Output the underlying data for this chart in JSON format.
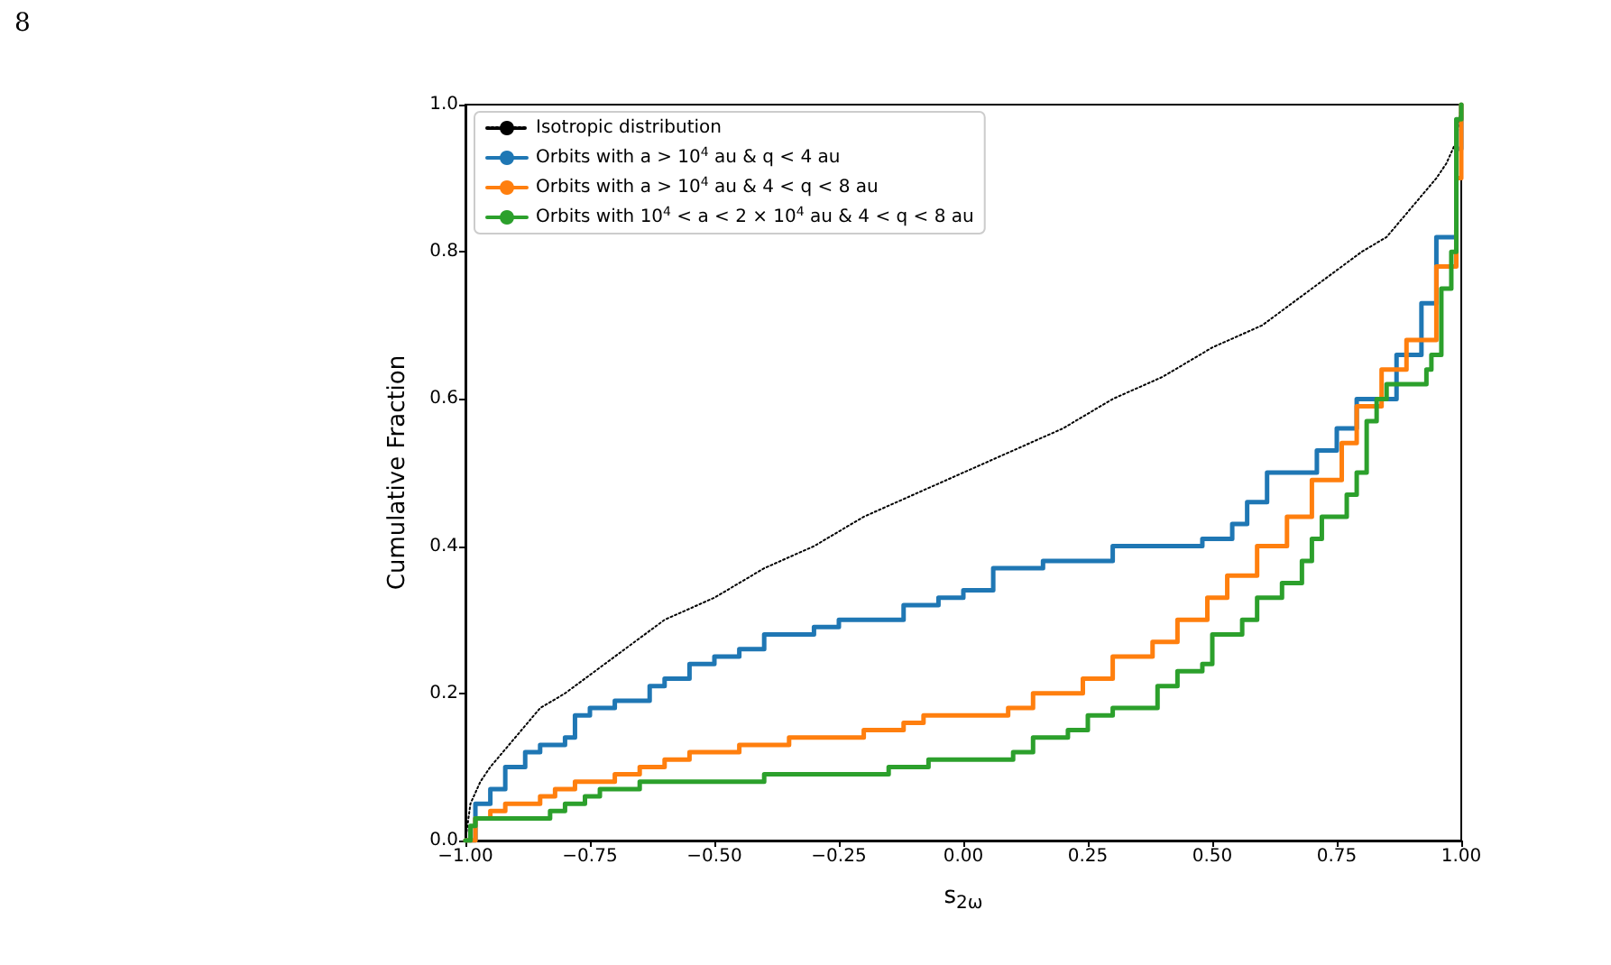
{
  "chart_data": {
    "type": "step",
    "xlabel": "s$_{2ω}$",
    "ylabel": "Cumulative Fraction",
    "annotations": [
      "8"
    ],
    "xlim": [
      -1,
      1
    ],
    "ylim": [
      0,
      1
    ],
    "xticks": [
      {
        "value": -1,
        "label": "−1.00"
      },
      {
        "value": -0.75,
        "label": "−0.75"
      },
      {
        "value": -0.5,
        "label": "−0.50"
      },
      {
        "value": -0.25,
        "label": "−0.25"
      },
      {
        "value": 0,
        "label": "0.00"
      },
      {
        "value": 0.25,
        "label": "0.25"
      },
      {
        "value": 0.5,
        "label": "0.50"
      },
      {
        "value": 0.75,
        "label": "0.75"
      },
      {
        "value": 1,
        "label": "1.00"
      }
    ],
    "yticks": [
      {
        "value": 0,
        "label": "0.0"
      },
      {
        "value": 0.2,
        "label": "0.2"
      },
      {
        "value": 0.4,
        "label": "0.4"
      },
      {
        "value": 0.6,
        "label": "0.6"
      },
      {
        "value": 0.8,
        "label": "0.8"
      },
      {
        "value": 1,
        "label": "1.0"
      }
    ],
    "grid": false,
    "legend": "top left",
    "marker": "none",
    "series": [
      {
        "name": "Isotropic distribution",
        "type": "line",
        "color": "#000000",
        "line_style": "dotted",
        "x": [
          -1,
          -0.99,
          -0.97,
          -0.95,
          -0.9,
          -0.85,
          -0.8,
          -0.7,
          -0.6,
          -0.5,
          -0.4,
          -0.3,
          -0.2,
          -0.1,
          0,
          0.1,
          0.2,
          0.3,
          0.4,
          0.5,
          0.6,
          0.7,
          0.8,
          0.85,
          0.9,
          0.95,
          0.97,
          0.99,
          1
        ],
        "values": [
          0,
          0.05,
          0.08,
          0.1,
          0.14,
          0.18,
          0.2,
          0.25,
          0.3,
          0.33,
          0.37,
          0.4,
          0.44,
          0.47,
          0.5,
          0.53,
          0.56,
          0.6,
          0.63,
          0.67,
          0.7,
          0.75,
          0.8,
          0.82,
          0.86,
          0.9,
          0.92,
          0.95,
          1
        ]
      },
      {
        "name": "Orbits with a > 10$^{4}$ au & q < 4 au",
        "color": "#1f77b4",
        "x": [
          -1,
          -0.98,
          -0.95,
          -0.92,
          -0.88,
          -0.85,
          -0.8,
          -0.78,
          -0.75,
          -0.7,
          -0.63,
          -0.6,
          -0.55,
          -0.5,
          -0.45,
          -0.4,
          -0.3,
          -0.25,
          -0.12,
          -0.05,
          0,
          0.06,
          0.16,
          0.3,
          0.48,
          0.54,
          0.57,
          0.61,
          0.71,
          0.75,
          0.79,
          0.87,
          0.92,
          0.95,
          0.99,
          1
        ],
        "values": [
          0,
          0.05,
          0.07,
          0.1,
          0.12,
          0.13,
          0.14,
          0.17,
          0.18,
          0.19,
          0.21,
          0.22,
          0.24,
          0.25,
          0.26,
          0.28,
          0.29,
          0.3,
          0.32,
          0.33,
          0.34,
          0.37,
          0.38,
          0.4,
          0.41,
          0.43,
          0.46,
          0.5,
          0.53,
          0.56,
          0.6,
          0.66,
          0.73,
          0.82,
          0.94,
          1
        ]
      },
      {
        "name": "Orbits with a > 10$^{4}$ au & 4 < q < 8 au",
        "color": "#ff7f0e",
        "x": [
          -1,
          -0.98,
          -0.95,
          -0.92,
          -0.85,
          -0.82,
          -0.78,
          -0.7,
          -0.65,
          -0.6,
          -0.55,
          -0.45,
          -0.35,
          -0.2,
          -0.12,
          -0.08,
          0.09,
          0.14,
          0.24,
          0.3,
          0.38,
          0.43,
          0.49,
          0.53,
          0.59,
          0.65,
          0.7,
          0.76,
          0.79,
          0.84,
          0.89,
          0.95,
          0.99,
          1
        ],
        "values": [
          0,
          0.03,
          0.04,
          0.05,
          0.06,
          0.07,
          0.08,
          0.09,
          0.1,
          0.11,
          0.12,
          0.13,
          0.14,
          0.15,
          0.16,
          0.17,
          0.18,
          0.2,
          0.22,
          0.25,
          0.27,
          0.3,
          0.33,
          0.36,
          0.4,
          0.44,
          0.49,
          0.54,
          0.59,
          0.64,
          0.68,
          0.78,
          0.9,
          1
        ]
      },
      {
        "name": "Orbits with 10$^{4}$ < a < 2 × 10$^{4}$ au & 4 < q < 8 au",
        "color": "#2ca02c",
        "x": [
          -1,
          -0.99,
          -0.98,
          -0.83,
          -0.8,
          -0.76,
          -0.73,
          -0.65,
          -0.4,
          -0.15,
          -0.07,
          0.1,
          0.14,
          0.21,
          0.25,
          0.3,
          0.39,
          0.43,
          0.48,
          0.5,
          0.56,
          0.59,
          0.64,
          0.68,
          0.7,
          0.72,
          0.77,
          0.79,
          0.81,
          0.83,
          0.85,
          0.93,
          0.94,
          0.96,
          0.98,
          0.99,
          1
        ],
        "values": [
          0,
          0.02,
          0.03,
          0.04,
          0.05,
          0.06,
          0.07,
          0.08,
          0.09,
          0.1,
          0.11,
          0.12,
          0.14,
          0.15,
          0.17,
          0.18,
          0.21,
          0.23,
          0.24,
          0.28,
          0.3,
          0.33,
          0.35,
          0.38,
          0.41,
          0.44,
          0.47,
          0.5,
          0.57,
          0.6,
          0.62,
          0.64,
          0.66,
          0.75,
          0.8,
          0.98,
          1
        ]
      }
    ]
  }
}
